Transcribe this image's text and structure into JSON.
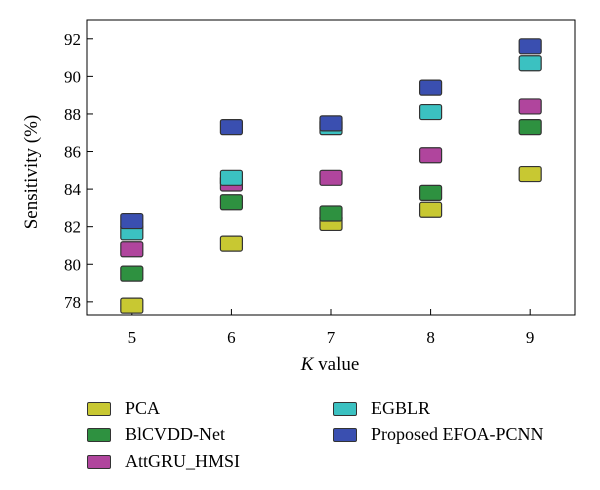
{
  "chart_data": {
    "type": "scatter",
    "xlabel_italic": "K",
    "xlabel_rest": " value",
    "ylabel": "Sensitivity (%)",
    "xlim": [
      4.55,
      9.45
    ],
    "ylim": [
      77.3,
      93.0
    ],
    "xticks": [
      5,
      6,
      7,
      8,
      9
    ],
    "yticks": [
      78,
      80,
      82,
      84,
      86,
      88,
      90,
      92
    ],
    "grid": false,
    "legend_position": "bottom",
    "x": [
      5,
      6,
      7,
      8,
      9
    ],
    "series": [
      {
        "name": "PCA",
        "color": "#c8c832",
        "values": [
          77.8,
          81.1,
          82.2,
          82.9,
          84.8
        ]
      },
      {
        "name": "BlCVDD-Net",
        "color": "#2e9140",
        "values": [
          79.5,
          83.3,
          82.7,
          83.8,
          87.3
        ]
      },
      {
        "name": "AttGRU_HMSI",
        "color": "#b0459d",
        "values": [
          80.8,
          84.3,
          84.6,
          85.8,
          88.4
        ]
      },
      {
        "name": "EGBLR",
        "color": "#3bc1c1",
        "values": [
          81.7,
          84.6,
          87.3,
          88.1,
          90.7
        ]
      },
      {
        "name": "Proposed EFOA-PCNN",
        "color": "#3a4fb0",
        "values": [
          82.3,
          87.3,
          87.5,
          89.4,
          91.6
        ]
      }
    ]
  }
}
